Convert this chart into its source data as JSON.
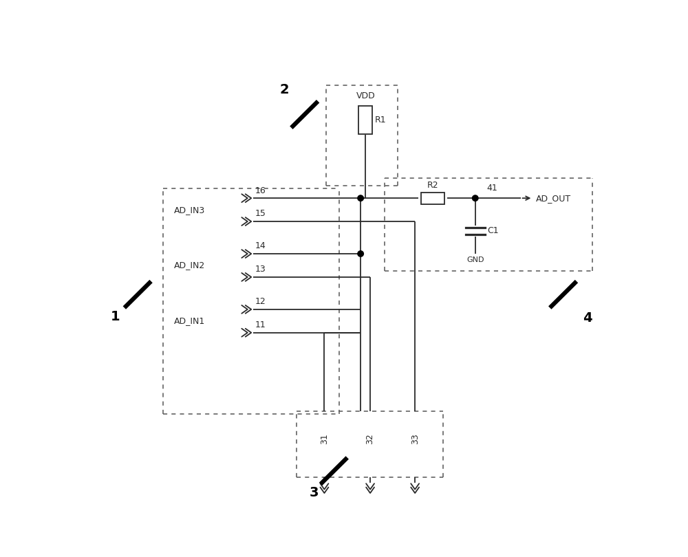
{
  "bg_color": "#ffffff",
  "line_color": "#2a2a2a",
  "dashed_color": "#555555",
  "dot_color": "#000000",
  "line_width": 1.3,
  "dash_lw": 1.1,
  "fig_width": 10.0,
  "fig_height": 8.1,
  "labels": {
    "label1": "1",
    "label2": "2",
    "label3": "3",
    "label4": "4",
    "AD_IN1": "AD_IN1",
    "AD_IN2": "AD_IN2",
    "AD_IN3": "AD_IN3",
    "VDD": "VDD",
    "R1": "R1",
    "R2": "R2",
    "C1": "C1",
    "GND": "GND",
    "AD_OUT": "AD_OUT",
    "p11": "11",
    "p12": "12",
    "p13": "13",
    "p14": "14",
    "p15": "15",
    "p16": "16",
    "p31": "31",
    "p32": "32",
    "p33": "33",
    "p41": "41"
  }
}
